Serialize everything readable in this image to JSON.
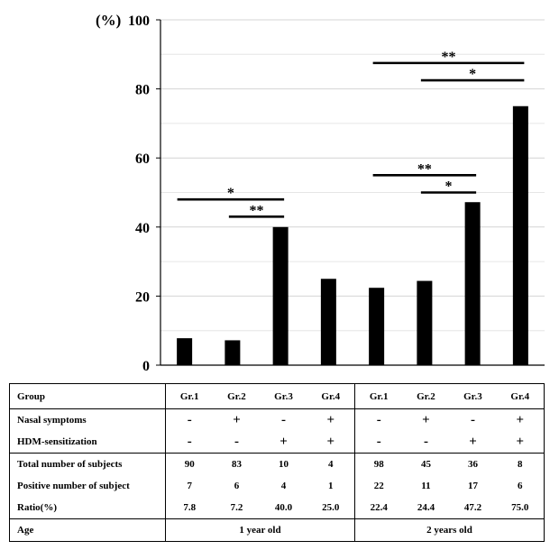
{
  "chart_data": {
    "type": "bar",
    "ylabel": "(%)",
    "ylim": [
      0,
      100
    ],
    "yticks": [
      0,
      20,
      40,
      60,
      80,
      100
    ],
    "grid": true,
    "bar_color": "#000000",
    "categories": [
      "Gr.1",
      "Gr.2",
      "Gr.3",
      "Gr.4",
      "Gr.1",
      "Gr.2",
      "Gr.3",
      "Gr.4"
    ],
    "values": [
      7.8,
      7.2,
      40.0,
      25.0,
      22.4,
      24.4,
      47.2,
      75.0
    ],
    "significance": [
      {
        "from": 0,
        "to": 2,
        "level": 48,
        "label": "*"
      },
      {
        "from": 1,
        "to": 2,
        "level": 43,
        "label": "**"
      },
      {
        "from": 4,
        "to": 6,
        "level": 55,
        "label": "**"
      },
      {
        "from": 5,
        "to": 6,
        "level": 50,
        "label": "*"
      },
      {
        "from": 4,
        "to": 7,
        "level": 87.5,
        "label": "**"
      },
      {
        "from": 5,
        "to": 7,
        "level": 82.5,
        "label": "*"
      }
    ]
  },
  "table": {
    "group_label": "Group",
    "groups": [
      "Gr.1",
      "Gr.2",
      "Gr.3",
      "Gr.4",
      "Gr.1",
      "Gr.2",
      "Gr.3",
      "Gr.4"
    ],
    "nasal_label": "Nasal symptoms",
    "nasal": [
      "-",
      "+",
      "-",
      "+",
      "-",
      "+",
      "-",
      "+"
    ],
    "hdm_label": "HDM-sensitization",
    "hdm": [
      "-",
      "-",
      "+",
      "+",
      "-",
      "-",
      "+",
      "+"
    ],
    "total_label": "Total number of subjects",
    "total": [
      "90",
      "83",
      "10",
      "4",
      "98",
      "45",
      "36",
      "8"
    ],
    "positive_label": "Positive number of subject",
    "positive": [
      "7",
      "6",
      "4",
      "1",
      "22",
      "11",
      "17",
      "6"
    ],
    "ratio_label": "Ratio(%)",
    "ratio": [
      "7.8",
      "7.2",
      "40.0",
      "25.0",
      "22.4",
      "24.4",
      "47.2",
      "75.0"
    ],
    "age_label": "Age",
    "age_groups": [
      "1 year old",
      "2 years old"
    ]
  }
}
